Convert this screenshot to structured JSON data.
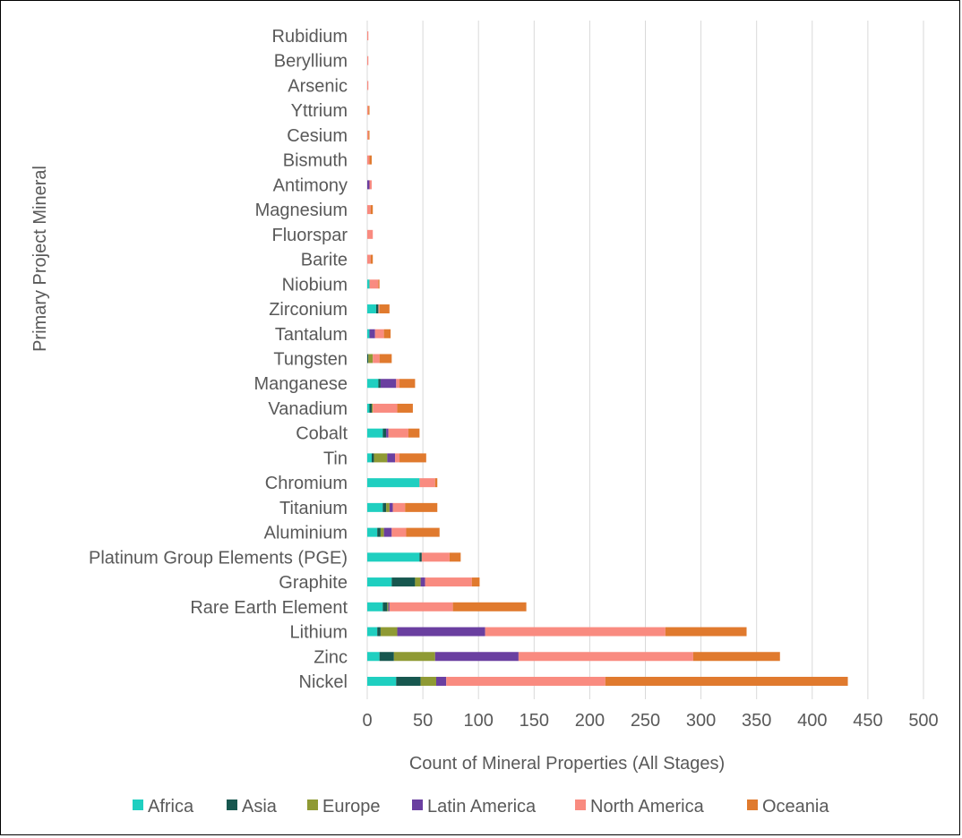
{
  "chart_data": {
    "type": "bar",
    "orientation": "horizontal",
    "stacked": true,
    "xlabel": "Count of Mineral Properties (All Stages)",
    "ylabel": "Primary Project Mineral",
    "xlim": [
      0,
      500
    ],
    "xticks": [
      0,
      50,
      100,
      150,
      200,
      250,
      300,
      350,
      400,
      450,
      500
    ],
    "grid": true,
    "legend_position": "bottom",
    "categories": [
      "Rubidium",
      "Beryllium",
      "Arsenic",
      "Yttrium",
      "Cesium",
      "Bismuth",
      "Antimony",
      "Magnesium",
      "Fluorspar",
      "Barite",
      "Niobium",
      "Zirconium",
      "Tantalum",
      "Tungsten",
      "Manganese",
      "Vanadium",
      "Cobalt",
      "Tin",
      "Chromium",
      "Titanium",
      "Aluminium",
      "Platinum Group Elements (PGE)",
      "Graphite",
      "Rare Earth Element",
      "Lithium",
      "Zinc",
      "Nickel"
    ],
    "series": [
      {
        "name": "Africa",
        "color": "#1fcfc0",
        "values": [
          0,
          0,
          0,
          0,
          0,
          0,
          0,
          0,
          0,
          0,
          2,
          8,
          2,
          0,
          10,
          2,
          14,
          4,
          47,
          14,
          9,
          47,
          22,
          14,
          9,
          11,
          26
        ]
      },
      {
        "name": "Asia",
        "color": "#17574f",
        "values": [
          0,
          0,
          0,
          0,
          0,
          0,
          0,
          0,
          0,
          0,
          0,
          2,
          0,
          1,
          2,
          2,
          3,
          2,
          0,
          3,
          3,
          2,
          21,
          4,
          3,
          13,
          22
        ]
      },
      {
        "name": "Europe",
        "color": "#8f9a34",
        "values": [
          0,
          0,
          0,
          0,
          0,
          0,
          0,
          0,
          0,
          0,
          0,
          0,
          0,
          4,
          0,
          1,
          0,
          12,
          0,
          3,
          3,
          0,
          5,
          1,
          15,
          37,
          14
        ]
      },
      {
        "name": "Latin America",
        "color": "#6a3fa0",
        "values": [
          0,
          0,
          0,
          0,
          0,
          0,
          2,
          0,
          0,
          0,
          0,
          0,
          5,
          0,
          14,
          0,
          2,
          7,
          0,
          3,
          7,
          0,
          4,
          1,
          79,
          75,
          9
        ]
      },
      {
        "name": "North America",
        "color": "#f98b80",
        "values": [
          1,
          1,
          1,
          1,
          1,
          2,
          2,
          3,
          5,
          3,
          8,
          1,
          8,
          6,
          3,
          22,
          18,
          4,
          14,
          11,
          13,
          25,
          42,
          57,
          162,
          157,
          143
        ]
      },
      {
        "name": "Oceania",
        "color": "#e07a2e",
        "values": [
          0,
          0,
          0,
          1,
          1,
          2,
          0,
          2,
          0,
          2,
          1,
          9,
          6,
          11,
          14,
          14,
          10,
          24,
          2,
          29,
          30,
          10,
          7,
          66,
          73,
          78,
          218
        ]
      }
    ]
  }
}
